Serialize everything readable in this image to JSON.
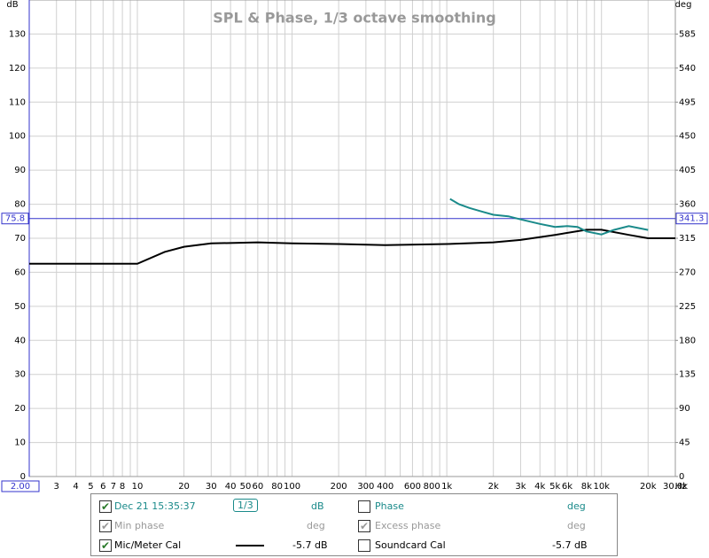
{
  "chart_data": {
    "type": "line",
    "title": "SPL & Phase, 1/3 octave smoothing",
    "y_unit": "dB",
    "y2_unit": "deg",
    "x_unit": "Hz",
    "log_x": true,
    "xlim": [
      2,
      30000
    ],
    "xticks": [
      {
        "value": 2,
        "label": "2.00"
      },
      3,
      4,
      5,
      6,
      7,
      8,
      10,
      20,
      30,
      40,
      50,
      60,
      80,
      100,
      200,
      300,
      400,
      600,
      800,
      {
        "value": 1000,
        "label": "1k"
      },
      {
        "value": 2000,
        "label": "2k"
      },
      {
        "value": 3000,
        "label": "3k"
      },
      {
        "value": 4000,
        "label": "4k"
      },
      {
        "value": 5000,
        "label": "5k"
      },
      {
        "value": 6000,
        "label": "6k"
      },
      {
        "value": 8000,
        "label": "8k"
      },
      {
        "value": 10000,
        "label": "10k"
      },
      {
        "value": 20000,
        "label": "20k"
      },
      {
        "value": 30000,
        "label": "30.0k"
      }
    ],
    "xgrid_minor": [
      9,
      70,
      90,
      500,
      700,
      900,
      7000,
      9000
    ],
    "ylim": [
      0,
      140
    ],
    "yticks": [
      0,
      10,
      20,
      30,
      40,
      50,
      60,
      70,
      80,
      90,
      100,
      110,
      120,
      130
    ],
    "y2lim": [
      0,
      630
    ],
    "y2ticks": [
      0,
      45,
      90,
      135,
      180,
      225,
      270,
      315,
      360,
      405,
      450,
      495,
      540,
      585
    ],
    "grid": true,
    "cursor": {
      "y": 75.8,
      "y2": 341.3
    },
    "series": [
      {
        "name": "Dec 21 15:35:37",
        "color": "#000000",
        "x": [
          2,
          5,
          10,
          15,
          20,
          30,
          60,
          100,
          200,
          400,
          1000,
          2000,
          3000,
          5000,
          8000,
          10000,
          15000,
          20000,
          30000
        ],
        "values": [
          62.5,
          62.5,
          62.5,
          66,
          67.5,
          68.5,
          68.8,
          68.5,
          68.3,
          68,
          68.3,
          68.8,
          69.5,
          71,
          72.5,
          72.5,
          71,
          70,
          70
        ]
      },
      {
        "name": "Phase",
        "color": "#1a8a8a",
        "axis": "y2",
        "x": [
          1050,
          1200,
          1400,
          1700,
          2000,
          2500,
          3000,
          4000,
          5000,
          6000,
          7000,
          8000,
          10000,
          12000,
          15000,
          20000
        ],
        "values": [
          367,
          360,
          355,
          350,
          346,
          344,
          340,
          334,
          330,
          331,
          330,
          324,
          320,
          326,
          331,
          326
        ]
      }
    ]
  },
  "legend_panel": {
    "smoothing": "1/3",
    "rows": [
      {
        "checked": [
          true,
          false
        ],
        "unit": "dB",
        "unit2": "deg"
      },
      {
        "checked": [
          true,
          true
        ],
        "label": "Min phase",
        "unit": "deg",
        "label2": "Excess phase",
        "unit2": "deg"
      },
      {
        "checked": [
          true,
          false
        ],
        "label": "Mic/Meter Cal",
        "value": "-5.7 dB",
        "label2": "Soundcard Cal",
        "value2": "-5.7 dB"
      }
    ]
  }
}
